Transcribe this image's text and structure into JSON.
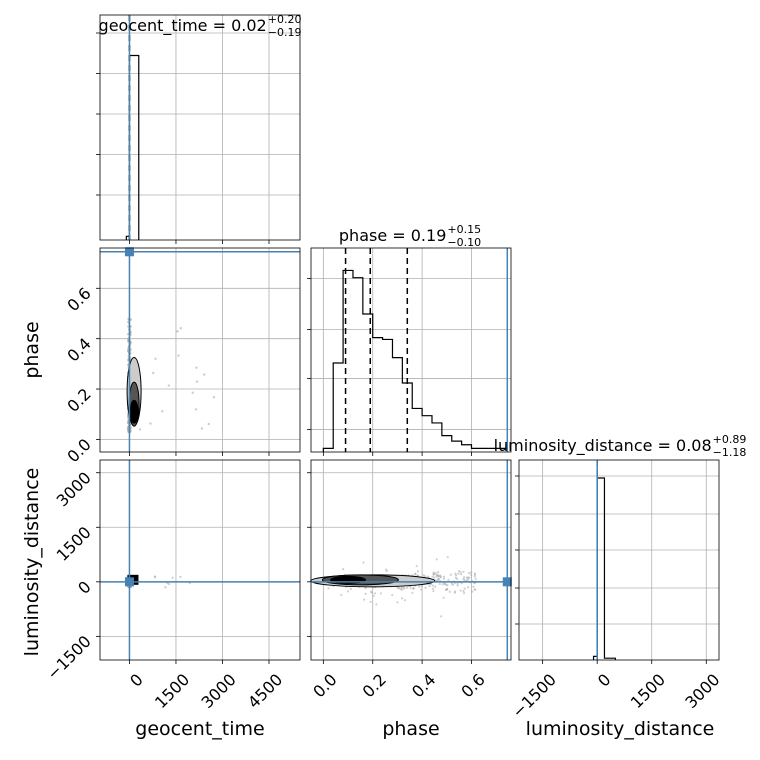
{
  "chart_data": {
    "type": "corner",
    "parameters": [
      "geocent_time",
      "phase",
      "luminosity_distance"
    ],
    "truth_color": "#4682b4",
    "titles": [
      {
        "name": "geocent_time",
        "median": "0.02",
        "plus": "+0.20",
        "minus": "−0.19"
      },
      {
        "name": "phase",
        "median": "0.19",
        "plus": "+0.15",
        "minus": "−0.10"
      },
      {
        "name": "luminosity_distance",
        "median": "0.08",
        "plus": "+0.89",
        "minus": "−1.18"
      }
    ],
    "axis_labels": {
      "geocent_time": "geocent_time",
      "phase": "phase",
      "luminosity_distance": "luminosity_distance"
    },
    "ranges": {
      "geocent_time": [
        -950,
        5500
      ],
      "phase": [
        -0.05,
        0.76
      ],
      "luminosity_distance": [
        -2150,
        3350
      ]
    },
    "ticks": {
      "geocent_time": [
        {
          "value": 0,
          "label": "0"
        },
        {
          "value": 1500,
          "label": "1500"
        },
        {
          "value": 3000,
          "label": "3000"
        },
        {
          "value": 4500,
          "label": "4500"
        }
      ],
      "phase_x": [
        {
          "value": 0.0,
          "label": "0.0"
        },
        {
          "value": 0.2,
          "label": "0.2"
        },
        {
          "value": 0.4,
          "label": "0.4"
        },
        {
          "value": 0.6,
          "label": "0.6"
        }
      ],
      "phase_y": [
        {
          "value": 0.0,
          "label": "0.0"
        },
        {
          "value": 0.2,
          "label": "0.2"
        },
        {
          "value": 0.4,
          "label": "0.4"
        },
        {
          "value": 0.6,
          "label": "0.6"
        }
      ],
      "luminosity_distance_x": [
        {
          "value": -1500,
          "label": "−1500"
        },
        {
          "value": 0,
          "label": "0"
        },
        {
          "value": 1500,
          "label": "1500"
        },
        {
          "value": 3000,
          "label": "3000"
        }
      ],
      "luminosity_distance_y": [
        {
          "value": -1500,
          "label": "−1500"
        },
        {
          "value": 0,
          "label": "0"
        },
        {
          "value": 1500,
          "label": "1500"
        },
        {
          "value": 3000,
          "label": "3000"
        }
      ]
    },
    "truths": {
      "geocent_time": 0,
      "phase": 0.745,
      "luminosity_distance": 0
    },
    "quantiles": {
      "geocent_time": [
        -0.17,
        0.02,
        0.22
      ],
      "phase": [
        0.09,
        0.19,
        0.34
      ],
      "luminosity_distance": [
        -1.1,
        0.08,
        0.97
      ]
    },
    "hist_geocent_time": {
      "bins": [
        -100,
        0,
        300
      ],
      "counts": [
        0.02,
        1.0
      ]
    },
    "hist_phase": {
      "bin_edges": [
        0.0,
        0.02,
        0.04,
        0.06,
        0.08,
        0.1,
        0.12,
        0.14,
        0.16,
        0.18,
        0.2,
        0.22,
        0.24,
        0.26,
        0.28,
        0.3,
        0.32,
        0.34,
        0.36,
        0.38,
        0.4,
        0.42,
        0.44,
        0.46,
        0.48,
        0.5,
        0.52,
        0.54,
        0.56,
        0.58,
        0.6,
        0.62,
        0.64,
        0.66,
        0.68,
        0.7,
        0.72,
        0.74
      ],
      "counts": [
        0.02,
        0.02,
        0.49,
        0.49,
        1.0,
        1.0,
        0.96,
        0.96,
        0.76,
        0.76,
        0.63,
        0.63,
        0.62,
        0.62,
        0.52,
        0.52,
        0.38,
        0.38,
        0.24,
        0.24,
        0.2,
        0.2,
        0.16,
        0.16,
        0.09,
        0.09,
        0.06,
        0.06,
        0.04,
        0.04,
        0.02,
        0.02,
        0.02,
        0.02,
        0.02,
        0.02,
        0.02
      ]
    },
    "hist_luminosity_distance": {
      "bins": [
        -100,
        0,
        200,
        500
      ],
      "counts": [
        0.02,
        1.0,
        0.01
      ]
    }
  }
}
